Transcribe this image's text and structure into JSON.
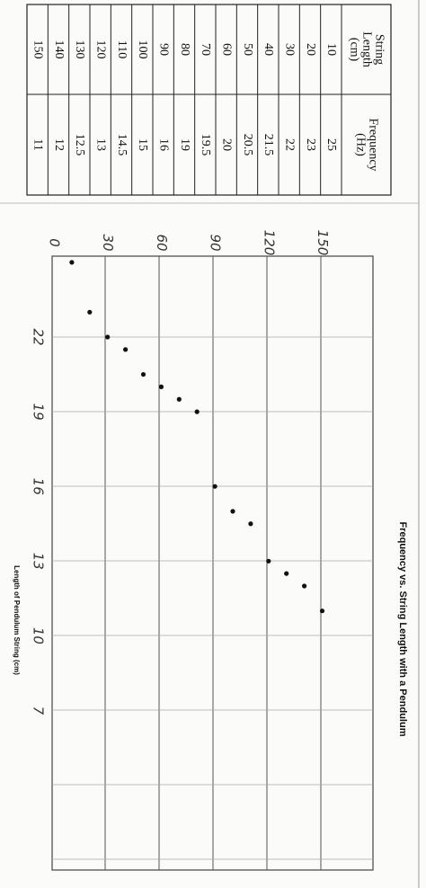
{
  "table": {
    "header": [
      [
        "String",
        "Length",
        "(cm)"
      ],
      [
        "Frequency",
        "(Hz)"
      ]
    ],
    "rows": [
      [
        10,
        25
      ],
      [
        20,
        23
      ],
      [
        30,
        22
      ],
      [
        40,
        21.5
      ],
      [
        50,
        20.5
      ],
      [
        60,
        20
      ],
      [
        70,
        19.5
      ],
      [
        80,
        19
      ],
      [
        90,
        16
      ],
      [
        100,
        15
      ],
      [
        110,
        14.5
      ],
      [
        120,
        13
      ],
      [
        130,
        12.5
      ],
      [
        140,
        12
      ],
      [
        150,
        11
      ]
    ]
  },
  "graph": {
    "title": "Frequency vs. String Length with a Pendulum",
    "x_label": "Length of Pendulum String (cm)",
    "x_ticks": [
      0,
      30,
      60,
      90,
      120,
      150
    ],
    "y_ticks": [
      22,
      19,
      16,
      13,
      10,
      7
    ]
  }
}
